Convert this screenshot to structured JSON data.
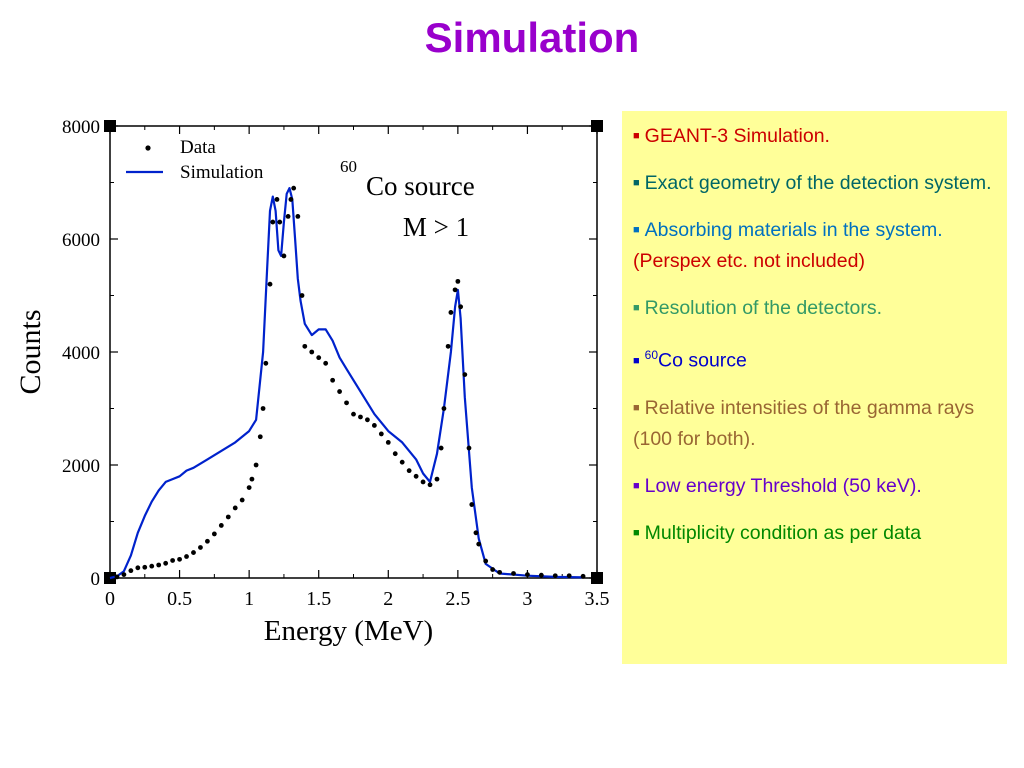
{
  "title": "Simulation",
  "notes": {
    "items": [
      {
        "text": "GEANT-3 Simulation.",
        "color": "#cc0000"
      },
      {
        "text": "Exact geometry of the detection system.",
        "color": "#006666"
      },
      {
        "text": "Absorbing materials in the system.",
        "extra": "(Perspex etc. not included)",
        "color": "#0070c0",
        "extra_color": "#cc0000"
      },
      {
        "text": "Resolution of the detectors.",
        "color": "#339966"
      },
      {
        "sup": "60",
        "text": "Co source",
        "color": "#0000cc"
      },
      {
        "text": "Relative intensities of the gamma rays (100 for both).",
        "color": "#996633"
      },
      {
        "text": "Low energy Threshold (50 keV).",
        "color": "#6600cc"
      },
      {
        "text": "Multiplicity condition as per data",
        "color": "#008800"
      }
    ],
    "bullet": "■"
  },
  "chart_data": {
    "type": "line",
    "xlabel": "Energy (MeV)",
    "ylabel": "Counts",
    "xlim": [
      0,
      3.5
    ],
    "ylim": [
      0,
      8000
    ],
    "x_ticks": [
      "0",
      "0.5",
      "1",
      "1.5",
      "2",
      "2.5",
      "3",
      "3.5"
    ],
    "y_ticks": [
      "0",
      "2000",
      "4000",
      "6000",
      "8000"
    ],
    "annotation": {
      "sup": "60",
      "line1": "Co source",
      "line2": "M > 1"
    },
    "legend_position": "top-left",
    "series": [
      {
        "name": "Data",
        "style": "dots",
        "color": "#000000",
        "x": [
          0.05,
          0.1,
          0.15,
          0.2,
          0.25,
          0.3,
          0.35,
          0.4,
          0.45,
          0.5,
          0.55,
          0.6,
          0.65,
          0.7,
          0.75,
          0.8,
          0.85,
          0.9,
          0.95,
          1.0,
          1.02,
          1.05,
          1.08,
          1.1,
          1.12,
          1.15,
          1.17,
          1.2,
          1.22,
          1.25,
          1.28,
          1.3,
          1.32,
          1.35,
          1.38,
          1.4,
          1.45,
          1.5,
          1.55,
          1.6,
          1.65,
          1.7,
          1.75,
          1.8,
          1.85,
          1.9,
          1.95,
          2.0,
          2.05,
          2.1,
          2.15,
          2.2,
          2.25,
          2.3,
          2.35,
          2.38,
          2.4,
          2.43,
          2.45,
          2.48,
          2.5,
          2.52,
          2.55,
          2.58,
          2.6,
          2.63,
          2.65,
          2.7,
          2.75,
          2.8,
          2.9,
          3.0,
          3.1,
          3.2,
          3.3,
          3.4
        ],
        "values": [
          20,
          60,
          130,
          180,
          190,
          210,
          230,
          260,
          310,
          330,
          380,
          450,
          540,
          650,
          780,
          930,
          1080,
          1240,
          1380,
          1600,
          1750,
          2000,
          2500,
          3000,
          3800,
          5200,
          6300,
          6700,
          6300,
          5700,
          6400,
          6700,
          6900,
          6400,
          5000,
          4100,
          4000,
          3900,
          3800,
          3500,
          3300,
          3100,
          2900,
          2850,
          2800,
          2700,
          2550,
          2400,
          2200,
          2050,
          1900,
          1800,
          1700,
          1650,
          1750,
          2300,
          3000,
          4100,
          4700,
          5100,
          5250,
          4800,
          3600,
          2300,
          1300,
          800,
          600,
          300,
          150,
          100,
          80,
          60,
          50,
          40,
          40,
          30
        ]
      },
      {
        "name": "Simulation",
        "style": "line",
        "color": "#0022cc",
        "x": [
          0,
          0.05,
          0.1,
          0.15,
          0.2,
          0.25,
          0.3,
          0.35,
          0.4,
          0.45,
          0.5,
          0.55,
          0.6,
          0.7,
          0.8,
          0.9,
          1.0,
          1.05,
          1.1,
          1.13,
          1.15,
          1.17,
          1.19,
          1.21,
          1.23,
          1.25,
          1.27,
          1.29,
          1.31,
          1.33,
          1.35,
          1.37,
          1.4,
          1.45,
          1.5,
          1.55,
          1.6,
          1.65,
          1.7,
          1.8,
          1.9,
          2.0,
          2.1,
          2.2,
          2.25,
          2.3,
          2.35,
          2.4,
          2.45,
          2.48,
          2.5,
          2.52,
          2.55,
          2.6,
          2.65,
          2.7,
          2.8,
          3.0,
          3.2,
          3.4
        ],
        "values": [
          0,
          30,
          120,
          400,
          800,
          1100,
          1350,
          1550,
          1700,
          1750,
          1800,
          1900,
          1950,
          2100,
          2250,
          2400,
          2600,
          2800,
          4000,
          5500,
          6500,
          6750,
          6500,
          5800,
          5700,
          6300,
          6800,
          6900,
          6700,
          6000,
          5300,
          4900,
          4500,
          4300,
          4400,
          4400,
          4200,
          3900,
          3700,
          3300,
          2900,
          2600,
          2400,
          2100,
          1850,
          1700,
          2200,
          3000,
          4000,
          4800,
          5100,
          4600,
          3200,
          1600,
          700,
          250,
          80,
          40,
          20,
          10
        ]
      }
    ]
  }
}
